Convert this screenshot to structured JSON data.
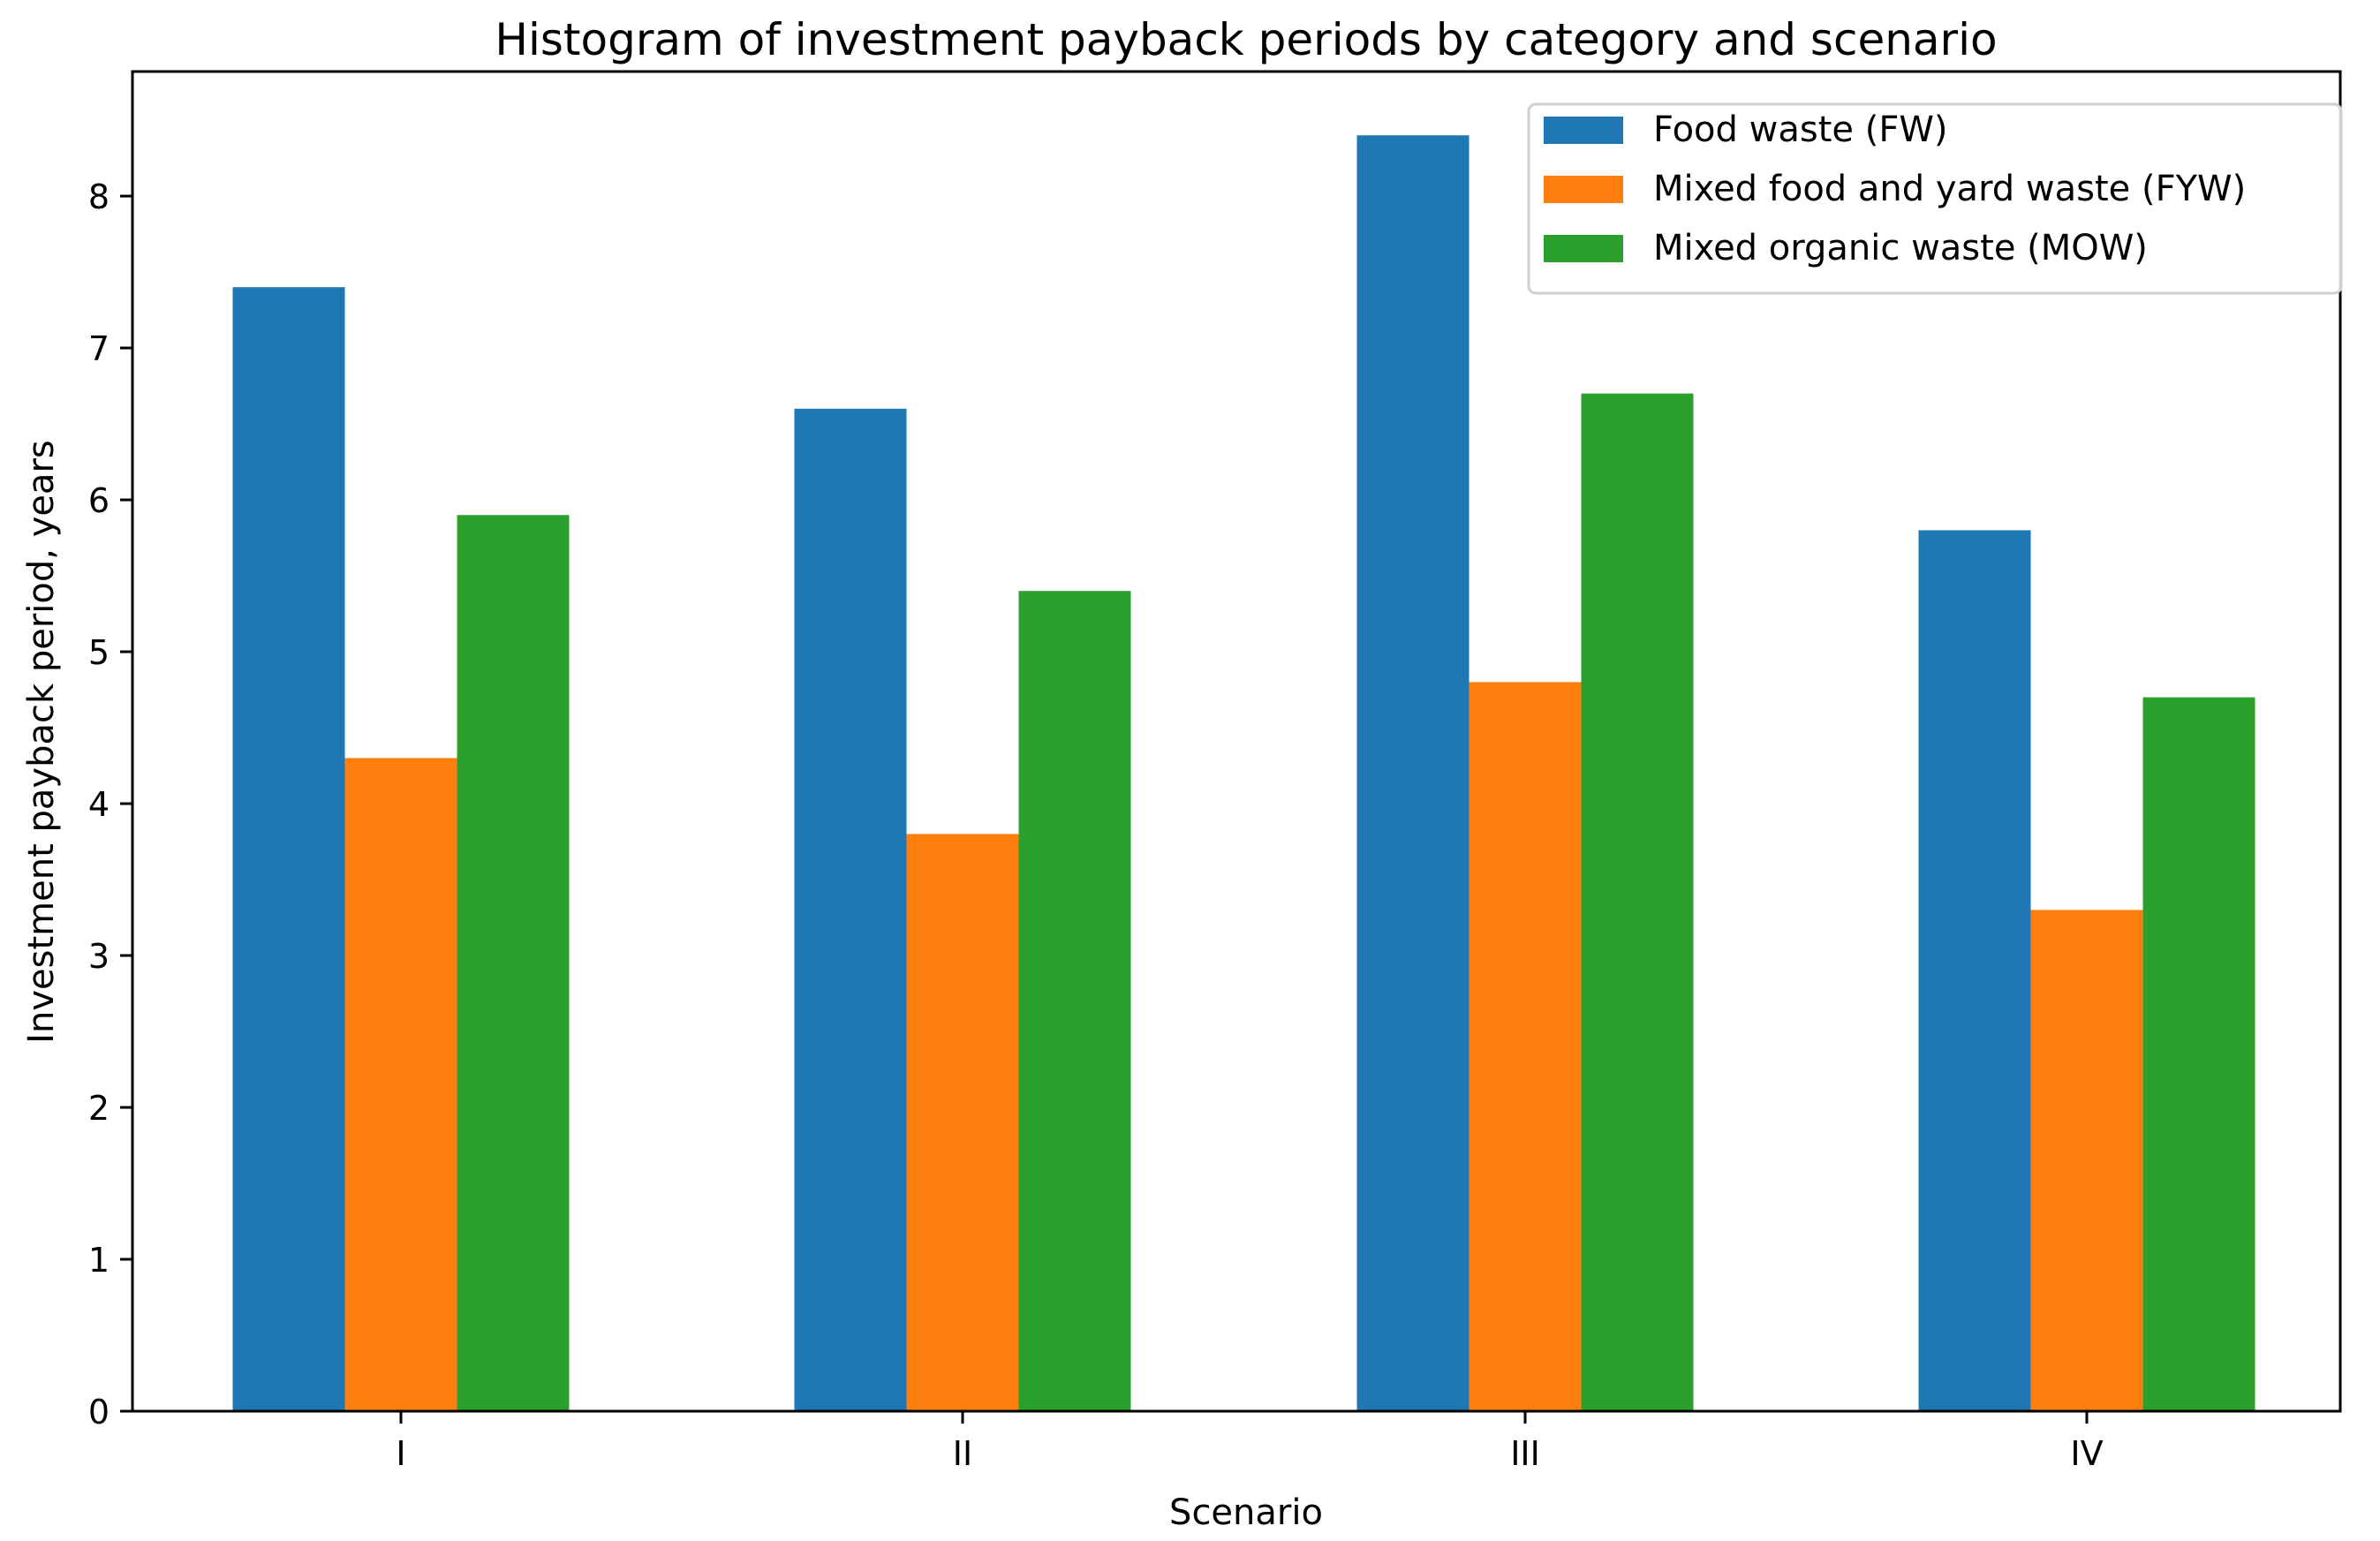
{
  "chart_data": {
    "type": "bar",
    "title": "Histogram of investment payback periods by category and scenario",
    "xlabel": "Scenario",
    "ylabel": "Investment payback period, years",
    "categories": [
      "I",
      "II",
      "III",
      "IV"
    ],
    "series": [
      {
        "name": "Food waste (FW)",
        "color": "#1f77b4",
        "values": [
          7.4,
          6.6,
          8.4,
          5.8
        ]
      },
      {
        "name": "Mixed food and yard waste (FYW)",
        "color": "#ff7f0e",
        "values": [
          4.3,
          3.8,
          4.8,
          3.3
        ]
      },
      {
        "name": "Mixed organic waste (MOW)",
        "color": "#2ca02c",
        "values": [
          5.9,
          5.4,
          6.7,
          4.7
        ]
      }
    ],
    "ylim": [
      0,
      8.82
    ],
    "yticks": [
      0,
      1,
      2,
      3,
      4,
      5,
      6,
      7,
      8
    ],
    "grid": false,
    "legend_position": "top-right"
  }
}
